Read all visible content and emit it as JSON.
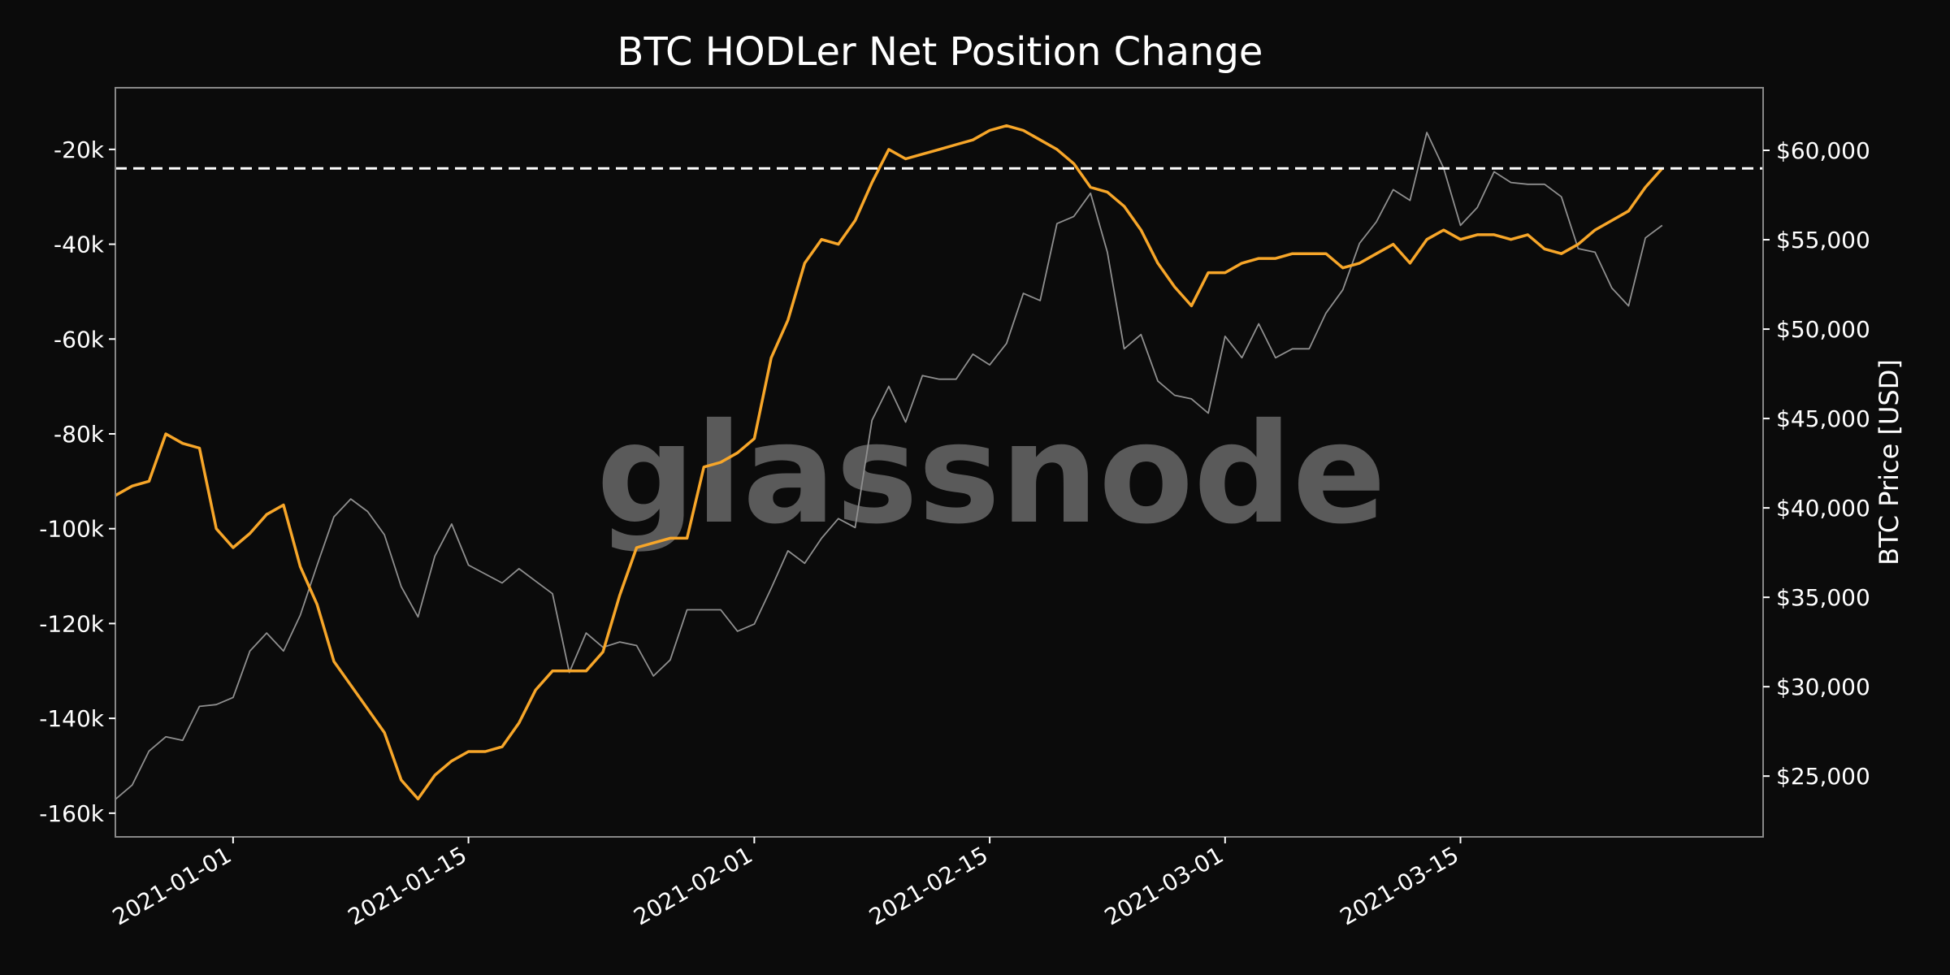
{
  "chart_data": {
    "type": "line",
    "title": "BTC HODLer Net Position Change",
    "watermark": "glassnode",
    "ylabel_right": "BTC Price [USD]",
    "ylabel_left": "",
    "xlabel": "",
    "grid": false,
    "background": "#0b0b0b",
    "frame_color": "#888888",
    "x_ticks": [
      "2021-01-01",
      "2021-01-15",
      "2021-02-01",
      "2021-02-15",
      "2021-03-01",
      "2021-03-15"
    ],
    "y_left_ticks": [
      {
        "value": -20000,
        "label": "-20k"
      },
      {
        "value": -40000,
        "label": "-40k"
      },
      {
        "value": -60000,
        "label": "-60k"
      },
      {
        "value": -80000,
        "label": "-80k"
      },
      {
        "value": -100000,
        "label": "-100k"
      },
      {
        "value": -120000,
        "label": "-120k"
      },
      {
        "value": -140000,
        "label": "-140k"
      },
      {
        "value": -160000,
        "label": "-160k"
      }
    ],
    "y_right_ticks": [
      {
        "value": 25000,
        "label": "$25,000"
      },
      {
        "value": 30000,
        "label": "$30,000"
      },
      {
        "value": 35000,
        "label": "$35,000"
      },
      {
        "value": 40000,
        "label": "$40,000"
      },
      {
        "value": 45000,
        "label": "$45,000"
      },
      {
        "value": 50000,
        "label": "$50,000"
      },
      {
        "value": 55000,
        "label": "$55,000"
      },
      {
        "value": 60000,
        "label": "$60,000"
      }
    ],
    "xlim": [
      "2020-12-25",
      "2021-04-02"
    ],
    "ylim_left": [
      -165000,
      -7000
    ],
    "ylim_right": [
      21600,
      63500
    ],
    "reference_line": {
      "axis": "left",
      "value": -24000,
      "style": "dashed",
      "color": "#ffffff"
    },
    "series": [
      {
        "axis": "left",
        "color": "#f7a629",
        "x": [
          "2020-12-25",
          "2020-12-26",
          "2020-12-27",
          "2020-12-28",
          "2020-12-29",
          "2020-12-30",
          "2020-12-31",
          "2021-01-01",
          "2021-01-02",
          "2021-01-03",
          "2021-01-04",
          "2021-01-05",
          "2021-01-06",
          "2021-01-07",
          "2021-01-08",
          "2021-01-09",
          "2021-01-10",
          "2021-01-11",
          "2021-01-12",
          "2021-01-13",
          "2021-01-14",
          "2021-01-15",
          "2021-01-16",
          "2021-01-17",
          "2021-01-18",
          "2021-01-19",
          "2021-01-20",
          "2021-01-21",
          "2021-01-22",
          "2021-01-23",
          "2021-01-24",
          "2021-01-25",
          "2021-01-26",
          "2021-01-27",
          "2021-01-28",
          "2021-01-29",
          "2021-01-30",
          "2021-01-31",
          "2021-02-01",
          "2021-02-02",
          "2021-02-03",
          "2021-02-04",
          "2021-02-05",
          "2021-02-06",
          "2021-02-07",
          "2021-02-08",
          "2021-02-09",
          "2021-02-10",
          "2021-02-11",
          "2021-02-12",
          "2021-02-13",
          "2021-02-14",
          "2021-02-15",
          "2021-02-16",
          "2021-02-17",
          "2021-02-18",
          "2021-02-19",
          "2021-02-20",
          "2021-02-21",
          "2021-02-22",
          "2021-02-23",
          "2021-02-24",
          "2021-02-25",
          "2021-02-26",
          "2021-02-27",
          "2021-02-28",
          "2021-03-01",
          "2021-03-02",
          "2021-03-03",
          "2021-03-04",
          "2021-03-05",
          "2021-03-06",
          "2021-03-07",
          "2021-03-08",
          "2021-03-09",
          "2021-03-10",
          "2021-03-11",
          "2021-03-12",
          "2021-03-13",
          "2021-03-14",
          "2021-03-15",
          "2021-03-16",
          "2021-03-17",
          "2021-03-18",
          "2021-03-19",
          "2021-03-20",
          "2021-03-21",
          "2021-03-22",
          "2021-03-23",
          "2021-03-24",
          "2021-03-25",
          "2021-03-26",
          "2021-03-27"
        ],
        "values": [
          -93000,
          -91000,
          -90000,
          -80000,
          -82000,
          -83000,
          -100000,
          -104000,
          -101000,
          -97000,
          -95000,
          -108000,
          -116000,
          -128000,
          -133000,
          -138000,
          -143000,
          -153000,
          -157000,
          -152000,
          -149000,
          -147000,
          -147000,
          -146000,
          -141000,
          -134000,
          -130000,
          -130000,
          -130000,
          -126000,
          -114000,
          -104000,
          -103000,
          -102000,
          -102000,
          -87000,
          -86000,
          -84000,
          -81000,
          -64000,
          -56000,
          -44000,
          -39000,
          -40000,
          -35000,
          -27000,
          -20000,
          -22000,
          -21000,
          -20000,
          -19000,
          -18000,
          -16000,
          -15000,
          -16000,
          -18000,
          -20000,
          -23000,
          -28000,
          -29000,
          -32000,
          -37000,
          -44000,
          -49000,
          -53000,
          -46000,
          -46000,
          -44000,
          -43000,
          -43000,
          -42000,
          -42000,
          -42000,
          -45000,
          -44000,
          -42000,
          -40000,
          -44000,
          -39000,
          -37000,
          -39000,
          -38000,
          -38000,
          -39000,
          -38000,
          -41000,
          -42000,
          -40000,
          -37000,
          -35000,
          -33000,
          -28000,
          -24000
        ]
      },
      {
        "axis": "right",
        "color": "#8f8f8f",
        "x": [
          "2020-12-25",
          "2020-12-26",
          "2020-12-27",
          "2020-12-28",
          "2020-12-29",
          "2020-12-30",
          "2020-12-31",
          "2021-01-01",
          "2021-01-02",
          "2021-01-03",
          "2021-01-04",
          "2021-01-05",
          "2021-01-06",
          "2021-01-07",
          "2021-01-08",
          "2021-01-09",
          "2021-01-10",
          "2021-01-11",
          "2021-01-12",
          "2021-01-13",
          "2021-01-14",
          "2021-01-15",
          "2021-01-16",
          "2021-01-17",
          "2021-01-18",
          "2021-01-19",
          "2021-01-20",
          "2021-01-21",
          "2021-01-22",
          "2021-01-23",
          "2021-01-24",
          "2021-01-25",
          "2021-01-26",
          "2021-01-27",
          "2021-01-28",
          "2021-01-29",
          "2021-01-30",
          "2021-01-31",
          "2021-02-01",
          "2021-02-02",
          "2021-02-03",
          "2021-02-04",
          "2021-02-05",
          "2021-02-06",
          "2021-02-07",
          "2021-02-08",
          "2021-02-09",
          "2021-02-10",
          "2021-02-11",
          "2021-02-12",
          "2021-02-13",
          "2021-02-14",
          "2021-02-15",
          "2021-02-16",
          "2021-02-17",
          "2021-02-18",
          "2021-02-19",
          "2021-02-20",
          "2021-02-21",
          "2021-02-22",
          "2021-02-23",
          "2021-02-24",
          "2021-02-25",
          "2021-02-26",
          "2021-02-27",
          "2021-02-28",
          "2021-03-01",
          "2021-03-02",
          "2021-03-03",
          "2021-03-04",
          "2021-03-05",
          "2021-03-06",
          "2021-03-07",
          "2021-03-08",
          "2021-03-09",
          "2021-03-10",
          "2021-03-11",
          "2021-03-12",
          "2021-03-13",
          "2021-03-14",
          "2021-03-15",
          "2021-03-16",
          "2021-03-17",
          "2021-03-18",
          "2021-03-19",
          "2021-03-20",
          "2021-03-21",
          "2021-03-22",
          "2021-03-23",
          "2021-03-24",
          "2021-03-25",
          "2021-03-26",
          "2021-03-27"
        ],
        "values": [
          23700,
          24500,
          26400,
          27200,
          27000,
          28900,
          29000,
          29400,
          32000,
          33000,
          32000,
          34000,
          36800,
          39500,
          40500,
          39800,
          38500,
          35600,
          33900,
          37300,
          39100,
          36800,
          36300,
          35800,
          36600,
          35900,
          35200,
          30800,
          33000,
          32200,
          32500,
          32300,
          30600,
          31500,
          34300,
          34300,
          34300,
          33100,
          33500,
          35500,
          37600,
          36900,
          38300,
          39400,
          38900,
          44900,
          46800,
          44800,
          47400,
          47200,
          47200,
          48600,
          48000,
          49200,
          52000,
          51600,
          55900,
          56300,
          57600,
          54300,
          48900,
          49700,
          47100,
          46300,
          46100,
          45300,
          49600,
          48400,
          50300,
          48400,
          48900,
          48900,
          50900,
          52200,
          54800,
          56000,
          57800,
          57200,
          61000,
          59000,
          55800,
          56800,
          58800,
          58200,
          58100,
          58100,
          57400,
          54500,
          54300,
          52300,
          51300,
          55100,
          55800
        ]
      }
    ]
  }
}
